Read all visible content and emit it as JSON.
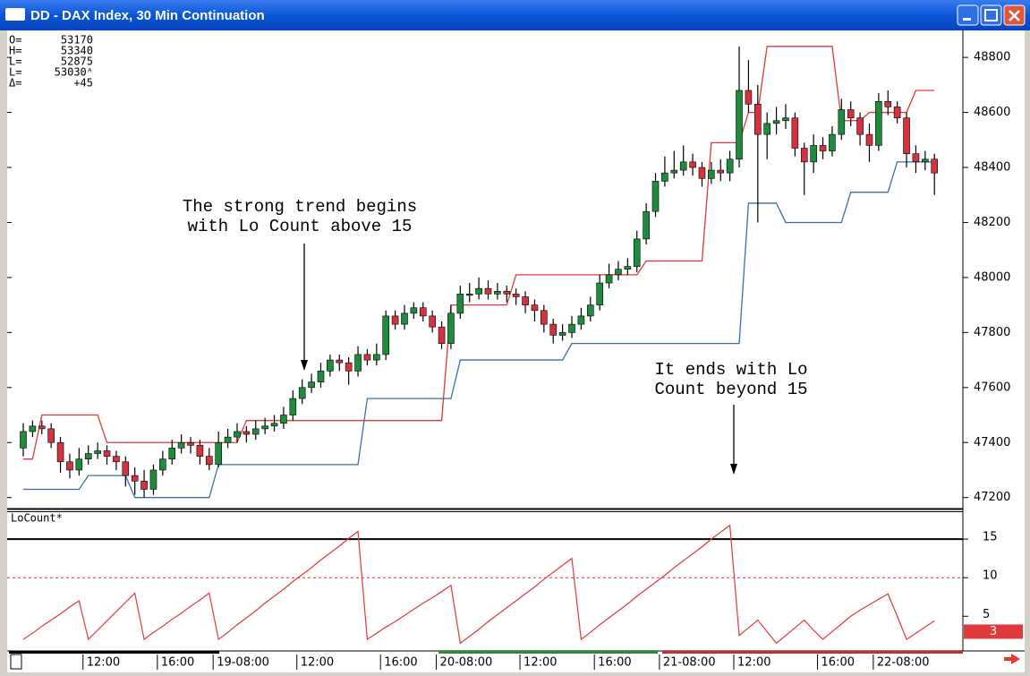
{
  "window": {
    "title": "DD - DAX Index, 30 Min Continuation"
  },
  "readout": [
    {
      "label": "O=",
      "value": "53170"
    },
    {
      "label": "H=",
      "value": "53340"
    },
    {
      "label": "L=",
      "value": "52875"
    },
    {
      "label": "L=",
      "value": "53030ᴬ"
    },
    {
      "label": "Δ=",
      "value": "+45"
    }
  ],
  "chart_data": [
    {
      "type": "candlestick",
      "up_color": "#1e8c3c",
      "down_color": "#d2333f",
      "ylim": [
        47160,
        48885
      ],
      "yticks": [
        47200,
        47400,
        47600,
        47800,
        48000,
        48200,
        48400,
        48600,
        48800
      ],
      "categories": [
        null,
        null,
        null,
        null,
        null,
        null,
        null,
        "12:00",
        null,
        null,
        null,
        null,
        null,
        null,
        null,
        "16:00",
        null,
        null,
        null,
        null,
        null,
        "19-08:00",
        null,
        null,
        null,
        null,
        null,
        null,
        null,
        null,
        "12:00",
        null,
        null,
        null,
        null,
        null,
        null,
        null,
        null,
        "16:00",
        null,
        null,
        null,
        null,
        null,
        "20-08:00",
        null,
        null,
        null,
        null,
        null,
        null,
        null,
        null,
        "12:00",
        null,
        null,
        null,
        null,
        null,
        null,
        null,
        "16:00",
        null,
        null,
        null,
        null,
        null,
        null,
        "21-08:00",
        null,
        null,
        null,
        null,
        null,
        null,
        null,
        "12:00",
        null,
        null,
        null,
        null,
        null,
        null,
        null,
        null,
        "16:00",
        null,
        null,
        null,
        null,
        null,
        "22-08:00",
        null,
        null,
        null,
        null,
        null,
        null
      ],
      "candles": [
        [
          47380,
          47470,
          47350,
          47440
        ],
        [
          47440,
          47480,
          47420,
          47460
        ],
        [
          47460,
          47480,
          47430,
          47450
        ],
        [
          47450,
          47470,
          47380,
          47400
        ],
        [
          47400,
          47420,
          47290,
          47330
        ],
        [
          47330,
          47360,
          47270,
          47300
        ],
        [
          47300,
          47380,
          47280,
          47340
        ],
        [
          47340,
          47390,
          47320,
          47360
        ],
        [
          47360,
          47400,
          47340,
          47370
        ],
        [
          47370,
          47390,
          47320,
          47350
        ],
        [
          47350,
          47370,
          47300,
          47330
        ],
        [
          47330,
          47350,
          47240,
          47280
        ],
        [
          47280,
          47310,
          47210,
          47260
        ],
        [
          47260,
          47300,
          47200,
          47230
        ],
        [
          47230,
          47320,
          47210,
          47300
        ],
        [
          47300,
          47370,
          47280,
          47340
        ],
        [
          47340,
          47410,
          47320,
          47380
        ],
        [
          47380,
          47430,
          47360,
          47400
        ],
        [
          47400,
          47420,
          47360,
          47390
        ],
        [
          47390,
          47410,
          47320,
          47350
        ],
        [
          47350,
          47380,
          47300,
          47320
        ],
        [
          47320,
          47440,
          47310,
          47400
        ],
        [
          47400,
          47450,
          47380,
          47420
        ],
        [
          47420,
          47470,
          47400,
          47440
        ],
        [
          47440,
          47460,
          47400,
          47430
        ],
        [
          47430,
          47480,
          47410,
          47450
        ],
        [
          47450,
          47490,
          47430,
          47460
        ],
        [
          47460,
          47500,
          47440,
          47470
        ],
        [
          47470,
          47530,
          47450,
          47500
        ],
        [
          47500,
          47590,
          47480,
          47560
        ],
        [
          47560,
          47630,
          47540,
          47600
        ],
        [
          47600,
          47650,
          47580,
          47620
        ],
        [
          47620,
          47690,
          47600,
          47660
        ],
        [
          47660,
          47720,
          47640,
          47700
        ],
        [
          47700,
          47720,
          47660,
          47690
        ],
        [
          47690,
          47710,
          47610,
          47660
        ],
        [
          47660,
          47750,
          47640,
          47720
        ],
        [
          47720,
          47740,
          47680,
          47700
        ],
        [
          47700,
          47760,
          47680,
          47720
        ],
        [
          47720,
          47880,
          47700,
          47860
        ],
        [
          47860,
          47880,
          47810,
          47830
        ],
        [
          47830,
          47900,
          47810,
          47870
        ],
        [
          47870,
          47910,
          47850,
          47890
        ],
        [
          47890,
          47910,
          47840,
          47860
        ],
        [
          47860,
          47880,
          47800,
          47820
        ],
        [
          47820,
          47840,
          47740,
          47760
        ],
        [
          47760,
          47900,
          47740,
          47870
        ],
        [
          47870,
          47970,
          47850,
          47940
        ],
        [
          47940,
          47980,
          47910,
          47940
        ],
        [
          47940,
          48000,
          47920,
          47960
        ],
        [
          47960,
          47990,
          47920,
          47940
        ],
        [
          47940,
          47980,
          47920,
          47950
        ],
        [
          47950,
          47970,
          47910,
          47940
        ],
        [
          47940,
          47960,
          47900,
          47930
        ],
        [
          47930,
          47950,
          47870,
          47900
        ],
        [
          47900,
          47920,
          47840,
          47880
        ],
        [
          47880,
          47900,
          47800,
          47830
        ],
        [
          47830,
          47850,
          47760,
          47790
        ],
        [
          47790,
          47830,
          47770,
          47800
        ],
        [
          47800,
          47860,
          47780,
          47830
        ],
        [
          47830,
          47890,
          47810,
          47860
        ],
        [
          47860,
          47930,
          47840,
          47900
        ],
        [
          47900,
          48010,
          47880,
          47980
        ],
        [
          47980,
          48050,
          47960,
          48010
        ],
        [
          48010,
          48060,
          47990,
          48030
        ],
        [
          48030,
          48070,
          48010,
          48040
        ],
        [
          48040,
          48170,
          48020,
          48140
        ],
        [
          48140,
          48270,
          48120,
          48240
        ],
        [
          48240,
          48380,
          48220,
          48350
        ],
        [
          48350,
          48440,
          48330,
          48380
        ],
        [
          48380,
          48460,
          48360,
          48390
        ],
        [
          48390,
          48480,
          48370,
          48420
        ],
        [
          48420,
          48450,
          48370,
          48400
        ],
        [
          48400,
          48420,
          48330,
          48360
        ],
        [
          48360,
          48420,
          48340,
          48390
        ],
        [
          48390,
          48430,
          48350,
          48380
        ],
        [
          48380,
          48460,
          48350,
          48430
        ],
        [
          48430,
          48840,
          48400,
          48680
        ],
        [
          48680,
          48790,
          48600,
          48630
        ],
        [
          48630,
          48700,
          48200,
          48520
        ],
        [
          48520,
          48600,
          48430,
          48560
        ],
        [
          48560,
          48620,
          48520,
          48570
        ],
        [
          48570,
          48630,
          48540,
          48580
        ],
        [
          48580,
          48600,
          48440,
          48470
        ],
        [
          48470,
          48490,
          48300,
          48420
        ],
        [
          48420,
          48520,
          48380,
          48480
        ],
        [
          48480,
          48510,
          48430,
          48460
        ],
        [
          48460,
          48550,
          48440,
          48520
        ],
        [
          48520,
          48650,
          48500,
          48610
        ],
        [
          48610,
          48640,
          48550,
          48580
        ],
        [
          48580,
          48600,
          48480,
          48520
        ],
        [
          48520,
          48560,
          48420,
          48480
        ],
        [
          48480,
          48670,
          48460,
          48640
        ],
        [
          48640,
          48680,
          48590,
          48620
        ],
        [
          48620,
          48640,
          48560,
          48580
        ],
        [
          48580,
          48600,
          48400,
          48450
        ],
        [
          48450,
          48480,
          48380,
          48420
        ],
        [
          48420,
          48460,
          48390,
          48430
        ],
        [
          48430,
          48450,
          48300,
          48380
        ]
      ],
      "series": [
        {
          "color": "#e0393b",
          "values": [
            47340,
            47340,
            47500,
            47500,
            47500,
            47500,
            47500,
            47500,
            47500,
            47400,
            47400,
            47400,
            47400,
            47400,
            47400,
            47400,
            47400,
            47400,
            47400,
            47400,
            47400,
            47400,
            47400,
            47400,
            47480,
            47480,
            47480,
            47480,
            47480,
            47480,
            47480,
            47480,
            47480,
            47480,
            47480,
            47480,
            47480,
            47480,
            47480,
            47480,
            47480,
            47480,
            47480,
            47480,
            47480,
            47480,
            47900,
            47900,
            47900,
            47900,
            47900,
            47900,
            47900,
            48010,
            48010,
            48010,
            48010,
            48010,
            48010,
            48010,
            48010,
            48010,
            48010,
            48010,
            48010,
            48010,
            48010,
            48060,
            48060,
            48060,
            48060,
            48060,
            48060,
            48060,
            48490,
            48490,
            48490,
            48490,
            48600,
            48600,
            48840,
            48840,
            48840,
            48840,
            48840,
            48840,
            48840,
            48840,
            48570,
            48570,
            48570,
            48600,
            48600,
            48600,
            48600,
            48600,
            48680,
            48680,
            48680
          ]
        },
        {
          "color": "#3b6ea8",
          "values": [
            47230,
            47230,
            47230,
            47230,
            47230,
            47230,
            47230,
            47280,
            47280,
            47280,
            47280,
            47280,
            47200,
            47200,
            47200,
            47200,
            47200,
            47200,
            47200,
            47200,
            47200,
            47320,
            47320,
            47320,
            47320,
            47320,
            47320,
            47320,
            47320,
            47320,
            47320,
            47320,
            47320,
            47320,
            47320,
            47320,
            47320,
            47560,
            47560,
            47560,
            47560,
            47560,
            47560,
            47560,
            47560,
            47560,
            47560,
            47700,
            47700,
            47700,
            47700,
            47700,
            47700,
            47700,
            47700,
            47700,
            47700,
            47700,
            47700,
            47760,
            47760,
            47760,
            47760,
            47760,
            47760,
            47760,
            47760,
            47760,
            47760,
            47760,
            47760,
            47760,
            47760,
            47760,
            47760,
            47760,
            47760,
            47760,
            48270,
            48270,
            48270,
            48270,
            48200,
            48200,
            48200,
            48200,
            48200,
            48200,
            48200,
            48310,
            48310,
            48310,
            48310,
            48310,
            48420,
            48420,
            48420,
            48420,
            48420
          ]
        }
      ],
      "annotations": [
        {
          "lines": [
            "The strong trend begins",
            "with Lo Count above 15"
          ]
        },
        {
          "lines": [
            "It ends with Lo",
            "Count beyond 15"
          ]
        }
      ]
    },
    {
      "type": "line",
      "title": "LoCount*",
      "ylim": [
        0.5,
        18.5
      ],
      "yticks": [
        5,
        10,
        15
      ],
      "reference_lines": [
        {
          "value": 15,
          "color": "#000000",
          "style": "solid"
        },
        {
          "value": 10,
          "color": "#e0393b",
          "style": "dashed"
        }
      ],
      "current_value": 3,
      "series": [
        {
          "color": "#e0393b",
          "values": [
            2,
            2.8,
            3.7,
            4.5,
            5.3,
            6.2,
            7,
            2,
            3.2,
            4.4,
            5.6,
            6.8,
            8,
            2,
            2.9,
            3.7,
            4.6,
            5.4,
            6.3,
            7.1,
            8,
            2,
            2.9,
            3.9,
            4.8,
            5.7,
            6.7,
            7.6,
            8.5,
            9.5,
            10.4,
            11.3,
            12.3,
            13.2,
            14.1,
            15.1,
            16,
            2,
            2.8,
            3.6,
            4.3,
            5.1,
            5.9,
            6.7,
            7.4,
            8.2,
            9,
            1.5,
            2.4,
            3.3,
            4.3,
            5.2,
            6.1,
            7,
            7.9,
            8.8,
            9.8,
            10.7,
            11.6,
            12.5,
            2,
            2.9,
            3.9,
            4.8,
            5.7,
            6.6,
            7.6,
            8.5,
            9.4,
            10.3,
            11.3,
            12.2,
            13.1,
            14,
            15,
            15.9,
            16.8,
            2.5,
            3.5,
            4.5,
            3,
            1.5,
            2.5,
            3.5,
            4.5,
            3.2,
            2,
            3,
            4,
            5,
            5.8,
            6.5,
            7.2,
            7.9,
            5,
            2,
            2.8,
            3.6,
            4.4
          ]
        }
      ]
    }
  ]
}
